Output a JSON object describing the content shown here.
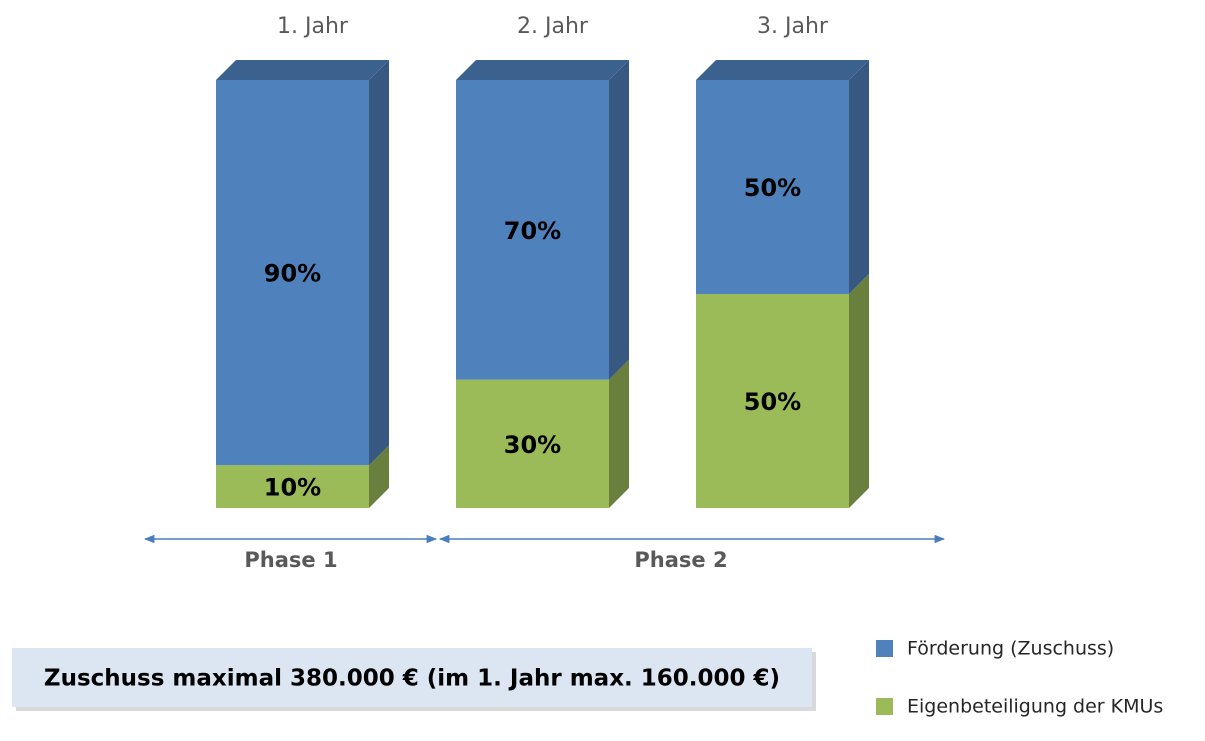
{
  "chart_data": {
    "type": "bar",
    "stacked": true,
    "categories": [
      "1. Jahr",
      "2. Jahr",
      "3. Jahr"
    ],
    "series": [
      {
        "name": "Eigenbeteiligung der KMUs",
        "color": "#9bbb59",
        "values": [
          10,
          30,
          50
        ],
        "value_labels": [
          "10%",
          "30%",
          "50%"
        ]
      },
      {
        "name": "Förderung (Zuschuss)",
        "color": "#4f81bd",
        "values": [
          90,
          70,
          50
        ],
        "value_labels": [
          "90%",
          "70%",
          "50%"
        ]
      }
    ],
    "phases": [
      "Phase 1",
      "Phase 2"
    ],
    "note": "Zuschuss maximal 380.000 € (im 1. Jahr max. 160.000 €)"
  }
}
